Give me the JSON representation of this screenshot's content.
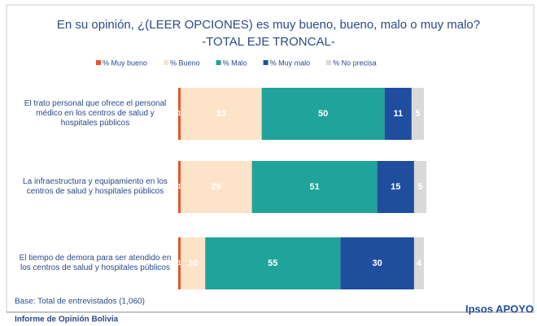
{
  "chart_data": {
    "type": "stacked-bar-horizontal",
    "title": "En su opinión, ¿(LEER OPCIONES) es muy bueno, bueno, malo o muy malo?",
    "subtitle": "-TOTAL EJE TRONCAL-",
    "categories": [
      "El trato personal que ofrece el personal médico en los centros de salud y hospitales públicos",
      "La infraestructura y equipamiento en los centros de salud y hospitales públicos",
      "El tiempo de demora para ser atendido en los centros de salud y hospitales públicos"
    ],
    "series": [
      {
        "name": "% Muy bueno",
        "color": "#e8562a",
        "values": [
          1,
          1,
          1
        ]
      },
      {
        "name": "% Bueno",
        "color": "#fde3c8",
        "values": [
          33,
          29,
          10
        ]
      },
      {
        "name": "% Malo",
        "color": "#1fa39a",
        "values": [
          50,
          51,
          55
        ]
      },
      {
        "name": "% Muy malo",
        "color": "#1f4e9e",
        "values": [
          11,
          15,
          30
        ]
      },
      {
        "name": "% No precisa",
        "color": "#d9d9d9",
        "values": [
          5,
          5,
          4
        ]
      }
    ],
    "xlim": [
      0,
      100
    ],
    "base_note": "Base: Total de entrevistados (1,060)",
    "footer": "Informe de Opinión Bolivia",
    "brand": "Ipsos APOYO"
  }
}
